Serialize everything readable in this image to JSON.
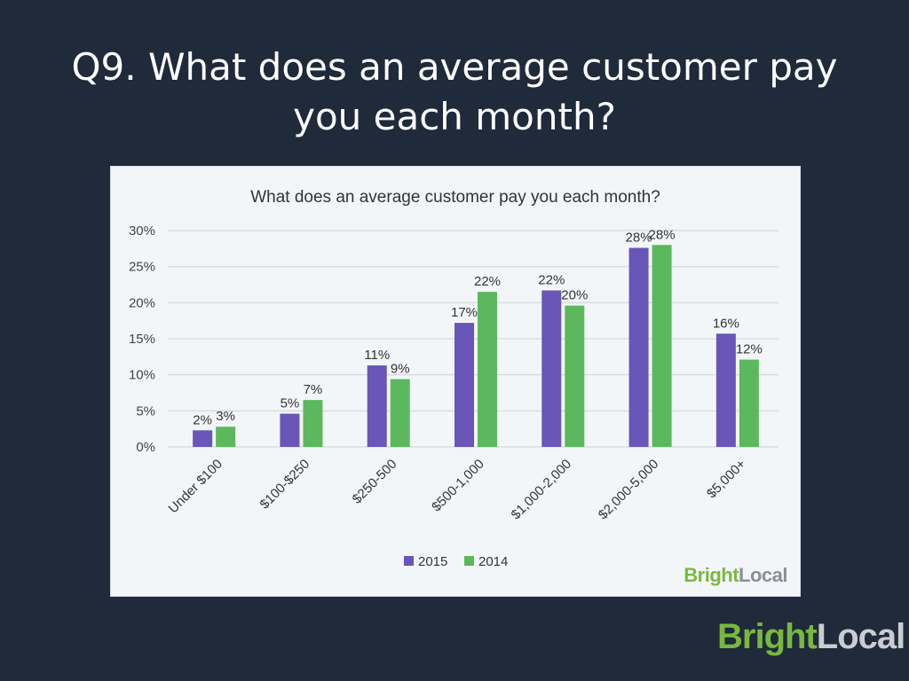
{
  "slide": {
    "title_line1": "Q9. What does an average customer pay",
    "title_line2": "you each month?"
  },
  "brand": {
    "bright": "Bright",
    "local": "Local"
  },
  "chart_data": {
    "type": "bar",
    "title": "What does an average customer pay you each month?",
    "categories": [
      "Under $100",
      "$100-$250",
      "$250-500",
      "$500-1,000",
      "$1,000-2,000",
      "$2,000-5,000",
      "$5,000+"
    ],
    "series": [
      {
        "name": "2015",
        "color": "#6a55b8",
        "values": [
          2,
          5,
          11,
          17,
          22,
          28,
          16
        ],
        "plotted": [
          2.3,
          4.6,
          11.3,
          17.2,
          21.7,
          27.6,
          15.7
        ],
        "labels": [
          "2%",
          "5%",
          "11%",
          "17%",
          "22%",
          "28%",
          "16%"
        ]
      },
      {
        "name": "2014",
        "color": "#5cb85c",
        "values": [
          3,
          7,
          9,
          22,
          20,
          28,
          12
        ],
        "plotted": [
          2.8,
          6.5,
          9.4,
          21.5,
          19.6,
          28.0,
          12.1
        ],
        "labels": [
          "3%",
          "7%",
          "9%",
          "22%",
          "20%",
          "28%",
          "12%"
        ]
      }
    ],
    "yticks": [
      "0%",
      "5%",
      "10%",
      "15%",
      "20%",
      "25%",
      "30%"
    ],
    "ylim": [
      0,
      30
    ],
    "grid": true,
    "legend": "bottom-center"
  }
}
